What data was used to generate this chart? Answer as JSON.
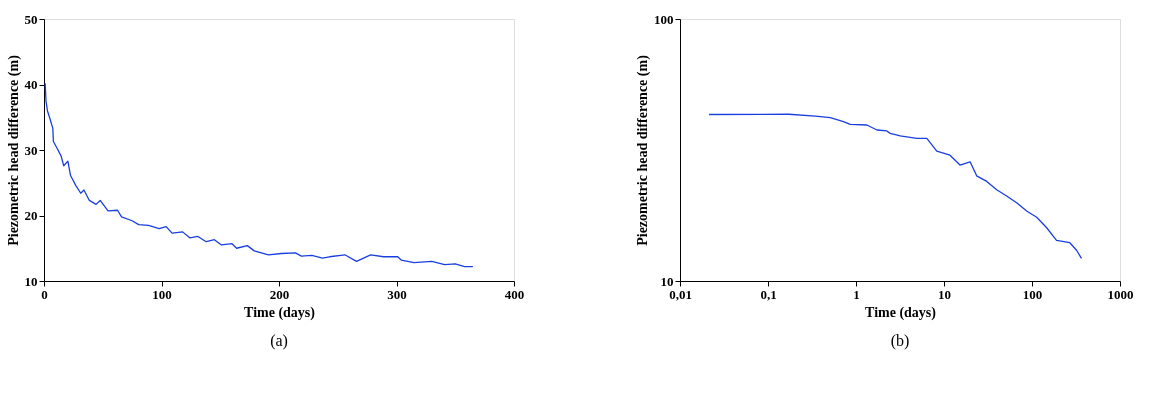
{
  "chart_data": [
    {
      "type": "line",
      "title": "(a)",
      "xlabel": "Time (days)",
      "ylabel": "Piezometric head difference (m)",
      "grid": false,
      "xlim": [
        0,
        400
      ],
      "ylim": [
        10,
        50
      ],
      "xticks": [
        0,
        100,
        200,
        300,
        400
      ],
      "yticks": [
        10,
        20,
        30,
        40,
        50
      ],
      "series": [
        {
          "color": "#1a3fe0",
          "x": [
            1,
            1.7,
            2.9,
            5.2,
            7.5,
            8,
            11,
            14.5,
            16.8,
            20.3,
            22.6,
            27,
            31.3,
            34,
            38.6,
            44.3,
            47.8,
            54.5,
            62.6,
            66,
            75,
            80.6,
            89,
            98,
            104,
            109,
            118,
            124,
            131,
            138,
            145,
            151,
            160,
            164,
            173,
            179,
            191,
            202,
            214,
            219,
            228,
            237,
            243,
            256,
            266,
            278,
            289,
            301,
            304,
            315,
            330,
            341,
            350,
            358,
            365
          ],
          "values": [
            40.2,
            37.5,
            36.0,
            34.7,
            33.3,
            31.3,
            30.3,
            29.1,
            27.6,
            28.3,
            26.1,
            24.6,
            23.4,
            23.9,
            22.3,
            21.7,
            22.3,
            20.7,
            20.8,
            19.8,
            19.2,
            18.6,
            18.5,
            18.0,
            18.3,
            17.3,
            17.5,
            16.6,
            16.8,
            16.0,
            16.3,
            15.5,
            15.7,
            15.0,
            15.4,
            14.6,
            14.0,
            14.2,
            14.3,
            13.8,
            13.9,
            13.5,
            13.7,
            14.0,
            13.0,
            14.0,
            13.7,
            13.7,
            13.2,
            12.8,
            13.0,
            12.5,
            12.6,
            12.2,
            12.2
          ]
        }
      ]
    },
    {
      "type": "line",
      "title": "(b)",
      "xlabel": "Time (days)",
      "ylabel": "Piezometric head difference (m)",
      "grid": false,
      "log": "xy",
      "xlim": [
        0.01,
        1000
      ],
      "ylim": [
        10,
        100
      ],
      "xticks": [
        {
          "value": 0.01,
          "label": "0,01"
        },
        {
          "value": 0.1,
          "label": "0,1"
        },
        1,
        10,
        100,
        1000
      ],
      "yticks": [
        10,
        100
      ],
      "series": [
        {
          "color": "#1a3fe0",
          "x": [
            0.0214,
            0.172,
            0.347,
            0.51,
            0.72,
            0.86,
            1.33,
            1.73,
            2.24,
            2.45,
            3.18,
            4.91,
            6.38,
            8.28,
            11.7,
            15.2,
            19.8,
            23.5,
            30.6,
            39.7,
            51.5,
            66.9,
            86.9,
            113,
            146,
            190,
            269,
            321,
            365
          ],
          "values": [
            43.2,
            43.3,
            42.6,
            42.0,
            40.6,
            39.6,
            39.4,
            37.7,
            37.4,
            36.6,
            35.8,
            35.0,
            35.0,
            31.3,
            30.2,
            27.7,
            28.5,
            25.2,
            24.0,
            22.3,
            21.1,
            19.9,
            18.5,
            17.5,
            16.0,
            14.3,
            14.0,
            13.1,
            12.2
          ]
        }
      ]
    }
  ]
}
